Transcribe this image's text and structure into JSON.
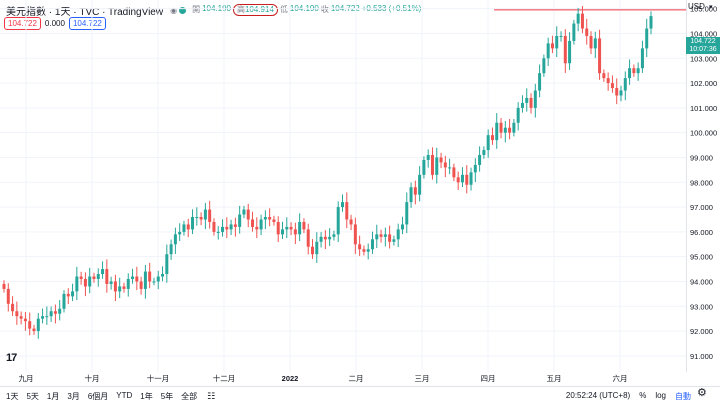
{
  "header": {
    "symbol": "美元指數 · 1天 · TVC · TradingView",
    "open_label": "開",
    "open": "104.190",
    "high_label": "高",
    "high": "104.914",
    "low_label": "低",
    "low": "104.190",
    "close_label": "收",
    "close": "104.722",
    "change": "+0.533 (+0.51%)"
  },
  "tags": {
    "price": "104.722",
    "spread": "0.000",
    "price2": "104.722"
  },
  "axis": {
    "currency": "USD"
  },
  "last_price": {
    "value": "104.722",
    "countdown": "10:07:36"
  },
  "bottom_bar": {
    "ranges": [
      "1天",
      "5天",
      "1月",
      "3月",
      "6個月",
      "YTD",
      "1年",
      "5年",
      "全部"
    ],
    "time": "20:52:24 (UTC+8)",
    "percent": "%",
    "log": "log",
    "auto": "自動"
  },
  "colors": {
    "up": "#26a69a",
    "down": "#ef5350",
    "grid": "#f0f3fa",
    "line": "#f23645"
  },
  "chart_data": {
    "type": "candlestick",
    "y_ticks": [
      91,
      92,
      93,
      94,
      95,
      96,
      97,
      98,
      99,
      100,
      101,
      102,
      103,
      104,
      105
    ],
    "y_tick_labels": [
      "91.000",
      "92.000",
      "93.000",
      "94.000",
      "95.000",
      "96.000",
      "97.000",
      "98.000",
      "99.000",
      "100.000",
      "101.000",
      "102.000",
      "103.000",
      "104.000",
      "105.000"
    ],
    "ylim": [
      90.35,
      105.35
    ],
    "x_ticks": [
      "九月",
      "十月",
      "十一月",
      "十二月",
      "2022",
      "二月",
      "三月",
      "四月",
      "五月",
      "六月"
    ],
    "reference_line": 104.95,
    "closes": [
      93.7,
      93.1,
      92.8,
      92.6,
      92.5,
      92.4,
      92.1,
      92.0,
      92.5,
      92.6,
      92.6,
      92.8,
      92.7,
      92.9,
      93.5,
      93.4,
      93.6,
      94.2,
      94.1,
      93.8,
      94.2,
      94.1,
      94.3,
      94.5,
      93.9,
      94.0,
      93.6,
      93.8,
      93.7,
      94.1,
      94.2,
      94.0,
      93.7,
      94.4,
      94.0,
      94.0,
      94.2,
      94.3,
      95.1,
      95.5,
      95.9,
      96.0,
      96.3,
      96.1,
      96.6,
      96.6,
      96.5,
      96.9,
      96.4,
      96.0,
      96.0,
      96.2,
      96.1,
      96.3,
      96.2,
      96.7,
      96.9,
      96.5,
      96.2,
      96.1,
      96.5,
      96.6,
      96.5,
      96.4,
      95.9,
      96.1,
      96.2,
      96.1,
      95.9,
      96.4,
      96.1,
      95.4,
      95.1,
      95.6,
      95.8,
      95.7,
      95.8,
      95.9,
      97.0,
      97.2,
      96.5,
      96.3,
      95.5,
      95.3,
      95.2,
      95.3,
      95.7,
      95.9,
      95.8,
      95.9,
      95.6,
      95.7,
      96.1,
      96.3,
      97.2,
      97.8,
      97.5,
      98.3,
      98.9,
      99.1,
      98.3,
      99.0,
      98.8,
      98.6,
      98.6,
      98.2,
      98.0,
      98.3,
      97.9,
      98.4,
      98.7,
      99.1,
      99.3,
      99.9,
      99.7,
      100.4,
      100.0,
      100.2,
      100.0,
      100.4,
      101.0,
      101.2,
      101.4,
      101.0,
      101.7,
      102.4,
      103.0,
      103.6,
      103.4,
      103.9,
      103.9,
      102.8,
      103.7,
      104.4,
      104.8,
      104.2,
      103.9,
      103.4,
      103.8,
      102.4,
      102.2,
      102.0,
      101.8,
      101.5,
      101.7,
      102.2,
      102.6,
      102.4,
      102.6,
      103.4,
      104.2,
      104.7
    ]
  }
}
